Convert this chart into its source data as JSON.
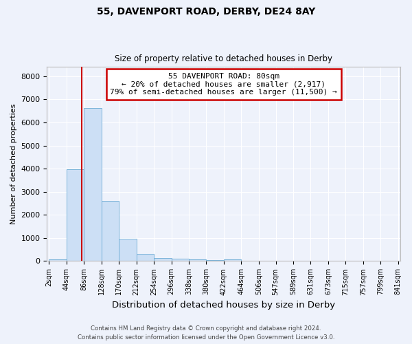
{
  "title1": "55, DAVENPORT ROAD, DERBY, DE24 8AY",
  "title2": "Size of property relative to detached houses in Derby",
  "xlabel": "Distribution of detached houses by size in Derby",
  "ylabel": "Number of detached properties",
  "bar_color": "#ccdff5",
  "bar_edge_color": "#6aaad4",
  "red_line_x": 80,
  "annotation_line1": "55 DAVENPORT ROAD: 80sqm",
  "annotation_line2": "← 20% of detached houses are smaller (2,917)",
  "annotation_line3": "79% of semi-detached houses are larger (11,500) →",
  "annotation_box_color": "white",
  "annotation_box_edge_color": "#cc0000",
  "red_line_color": "#cc0000",
  "bin_edges": [
    2,
    44,
    86,
    128,
    170,
    212,
    254,
    296,
    338,
    380,
    422,
    464,
    506,
    547,
    589,
    631,
    673,
    715,
    757,
    799,
    841
  ],
  "bar_heights": [
    60,
    3980,
    6620,
    2600,
    960,
    320,
    120,
    90,
    60,
    50,
    60,
    0,
    0,
    0,
    0,
    0,
    0,
    0,
    0,
    0
  ],
  "ylim": [
    0,
    8400
  ],
  "yticks": [
    0,
    1000,
    2000,
    3000,
    4000,
    5000,
    6000,
    7000,
    8000
  ],
  "tick_labels": [
    "2sqm",
    "44sqm",
    "86sqm",
    "128sqm",
    "170sqm",
    "212sqm",
    "254sqm",
    "296sqm",
    "338sqm",
    "380sqm",
    "422sqm",
    "464sqm",
    "506sqm",
    "547sqm",
    "589sqm",
    "631sqm",
    "673sqm",
    "715sqm",
    "757sqm",
    "799sqm",
    "841sqm"
  ],
  "footer1": "Contains HM Land Registry data © Crown copyright and database right 2024.",
  "footer2": "Contains public sector information licensed under the Open Government Licence v3.0.",
  "background_color": "#eef2fb",
  "grid_color": "white"
}
